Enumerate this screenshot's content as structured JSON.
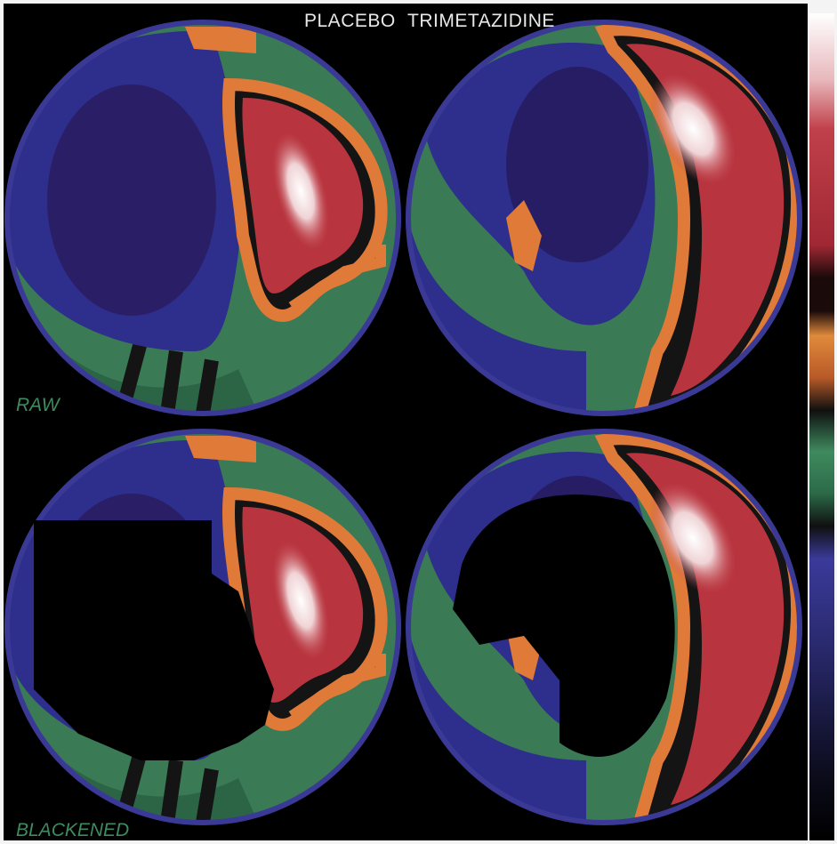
{
  "header": {
    "title_left": "PLACEBO",
    "title_right": "TRIMETAZIDINE"
  },
  "rows": [
    {
      "label": "RAW"
    },
    {
      "label": "BLACKENED"
    }
  ]
}
